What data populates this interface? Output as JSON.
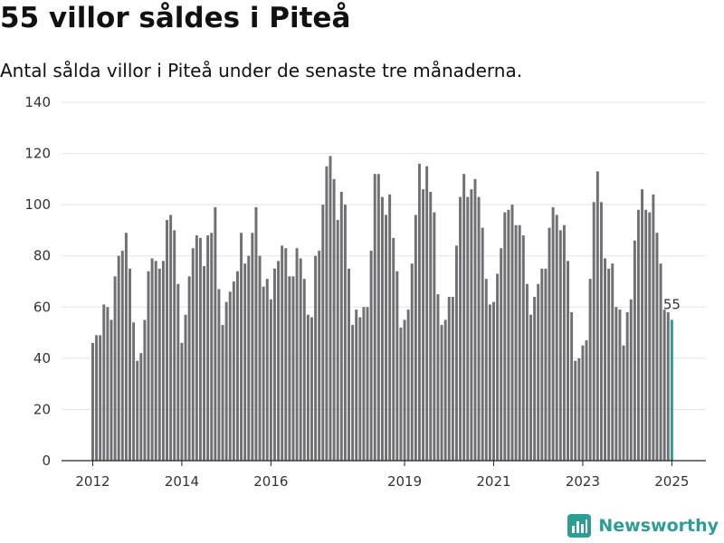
{
  "title": "55 villor såldes i Piteå",
  "subtitle": "Antal sålda villor i Piteå under de senaste tre månaderna.",
  "brand": "Newsworthy",
  "colors": {
    "bar": "#707074",
    "highlight": "#2a9d8f",
    "brand": "#2c9e95"
  },
  "chart_data": {
    "type": "bar",
    "title": "55 villor såldes i Piteå",
    "subtitle": "Antal sålda villor i Piteå under de senaste tre månaderna.",
    "xlabel": "",
    "ylabel": "",
    "ylim": [
      0,
      140
    ],
    "yticks": [
      0,
      20,
      40,
      60,
      80,
      100,
      120,
      140
    ],
    "xtick_labels": [
      "2012",
      "2014",
      "2016",
      "2019",
      "2021",
      "2023",
      "2025"
    ],
    "grid": true,
    "highlight_label": "55",
    "months_note": "monthly values from 2012-01 to 2025-01",
    "start": "2012-01",
    "values": [
      46,
      49,
      49,
      61,
      60,
      55,
      72,
      80,
      82,
      89,
      75,
      54,
      39,
      42,
      55,
      74,
      79,
      78,
      75,
      78,
      94,
      96,
      90,
      69,
      46,
      57,
      72,
      83,
      88,
      87,
      76,
      88,
      89,
      99,
      67,
      53,
      62,
      66,
      70,
      74,
      89,
      77,
      80,
      89,
      99,
      80,
      68,
      71,
      63,
      75,
      78,
      84,
      83,
      72,
      72,
      83,
      79,
      71,
      57,
      56,
      80,
      82,
      100,
      115,
      119,
      110,
      94,
      105,
      100,
      75,
      53,
      59,
      56,
      60,
      60,
      82,
      112,
      112,
      103,
      96,
      104,
      87,
      74,
      52,
      55,
      59,
      77,
      96,
      116,
      106,
      115,
      105,
      97,
      65,
      53,
      55,
      64,
      64,
      84,
      103,
      112,
      103,
      106,
      110,
      103,
      91,
      71,
      61,
      62,
      73,
      83,
      97,
      98,
      100,
      92,
      92,
      88,
      69,
      57,
      64,
      69,
      75,
      75,
      91,
      99,
      96,
      90,
      92,
      78,
      58,
      39,
      40,
      45,
      47,
      71,
      101,
      113,
      101,
      79,
      75,
      77,
      60,
      59,
      45,
      58,
      63,
      86,
      98,
      106,
      98,
      97,
      104,
      89,
      77,
      59,
      58,
      55
    ]
  }
}
